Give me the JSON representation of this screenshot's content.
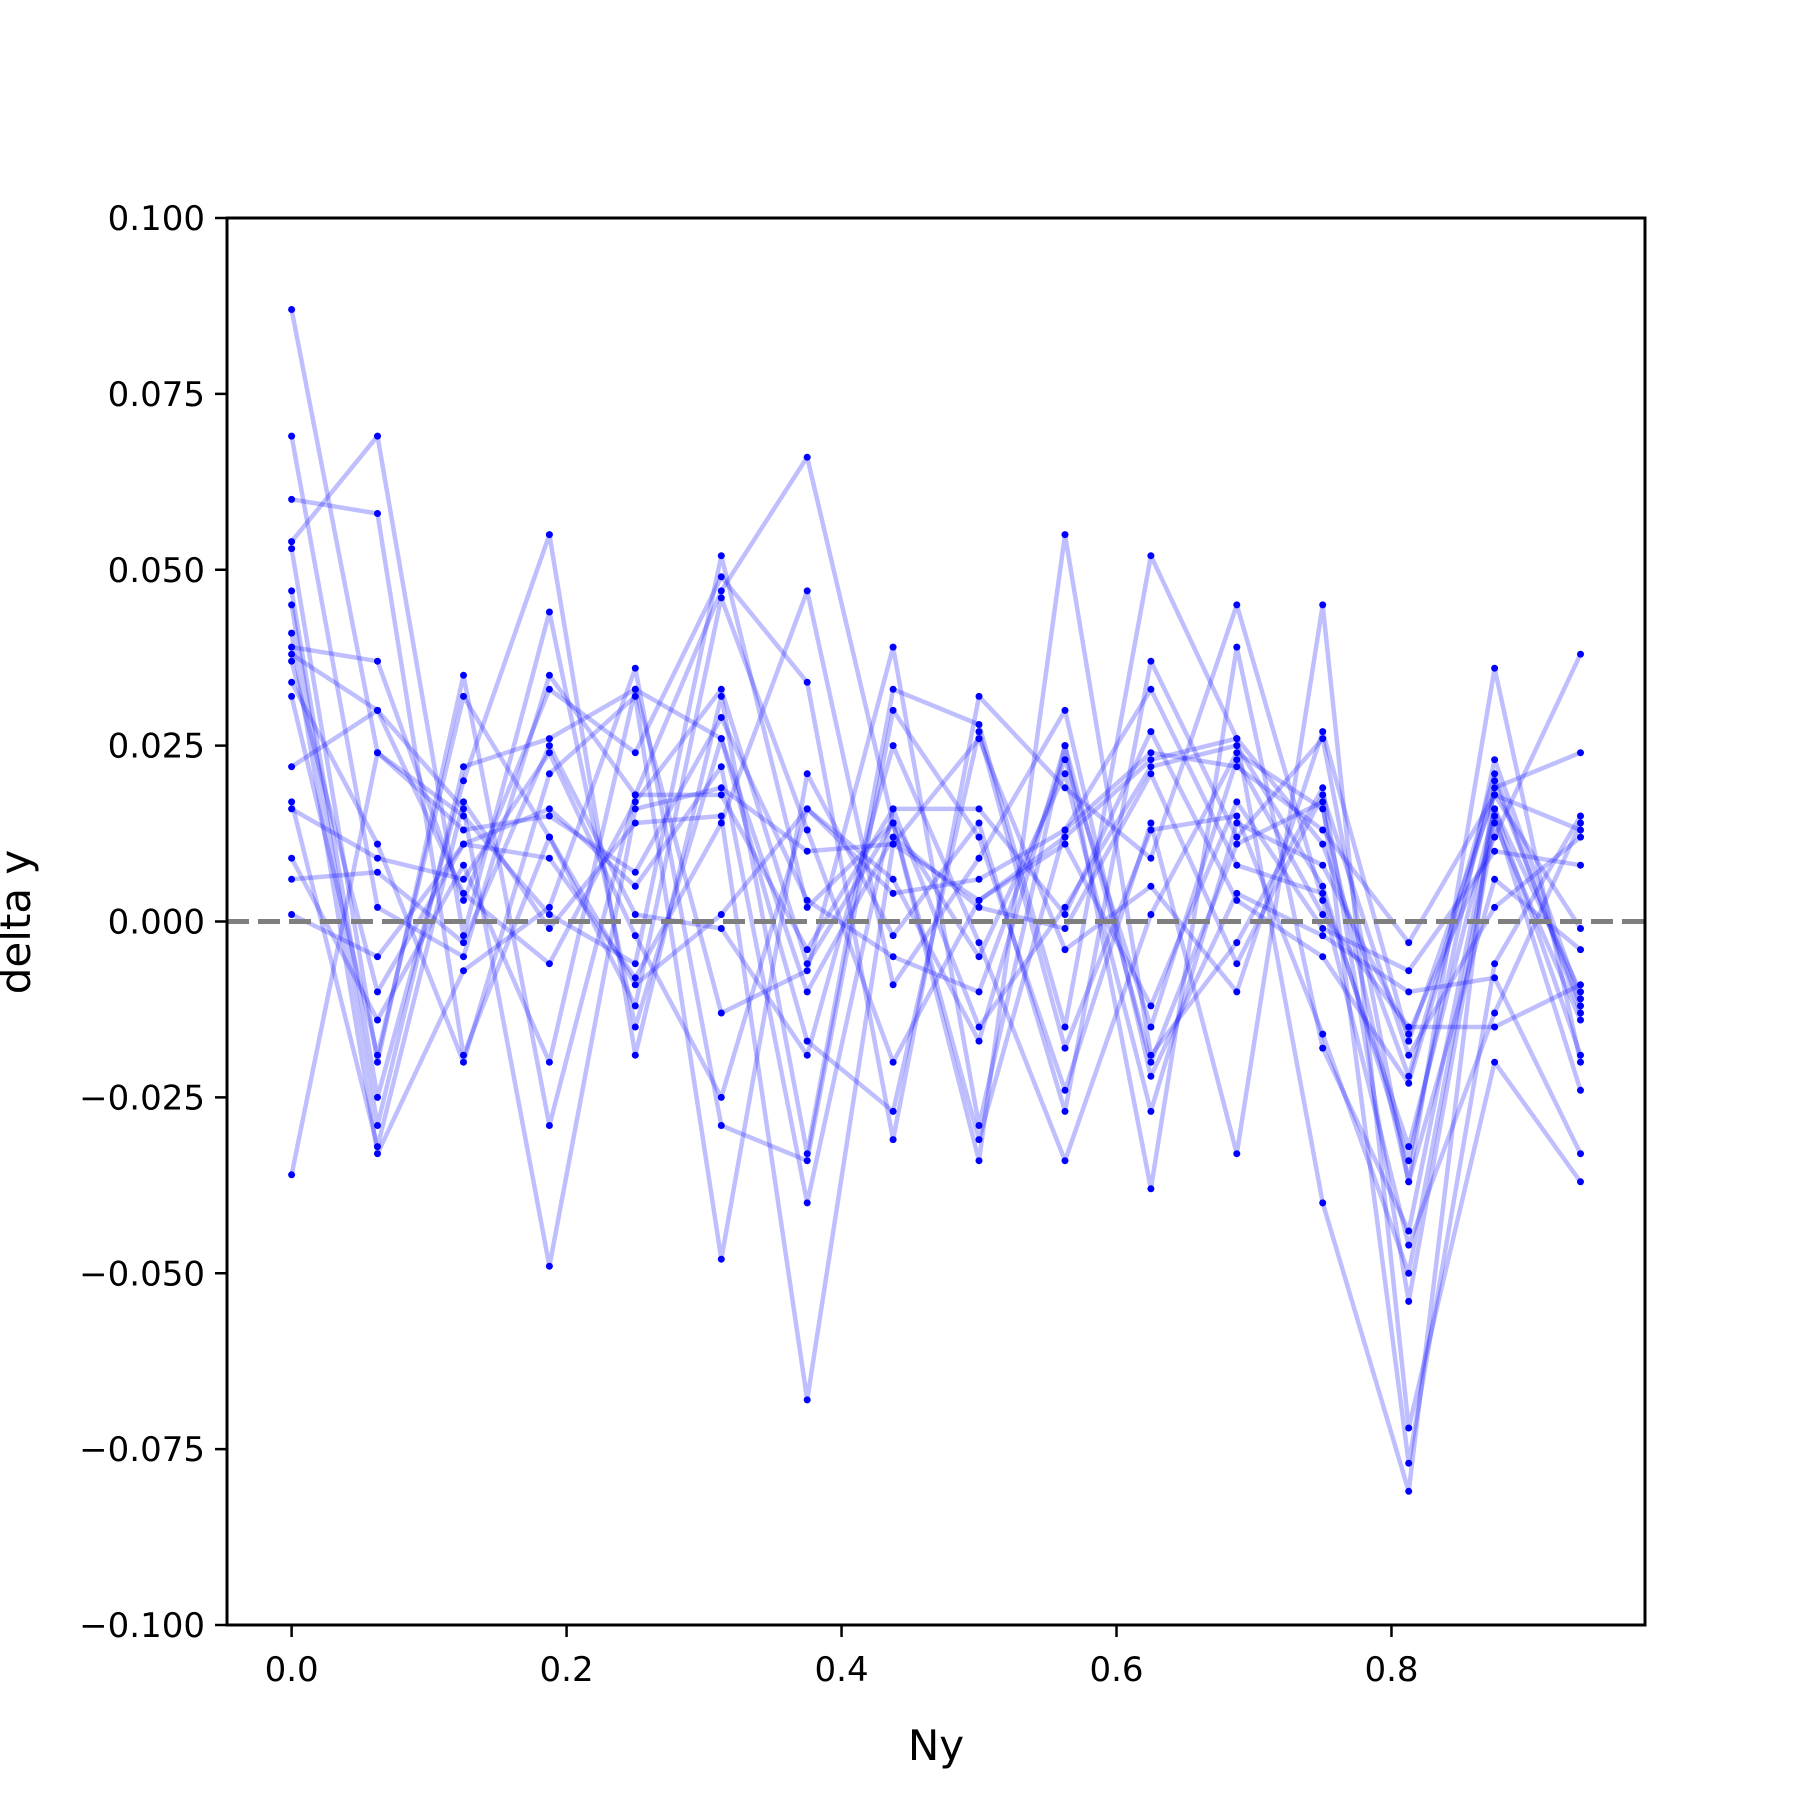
{
  "chart_data": {
    "type": "line",
    "xlabel": "Ny",
    "ylabel": "delta y",
    "xlim": [
      -0.047,
      0.9844
    ],
    "ylim": [
      -0.1,
      0.1
    ],
    "x": [
      0.0,
      0.0625,
      0.125,
      0.1875,
      0.25,
      0.3125,
      0.375,
      0.4375,
      0.5,
      0.5625,
      0.625,
      0.6875,
      0.75,
      0.8125,
      0.875,
      0.9375
    ],
    "x_ticks": [
      "0.0",
      "0.2",
      "0.4",
      "0.6",
      "0.8"
    ],
    "y_ticks": [
      "−0.100",
      "−0.075",
      "−0.050",
      "−0.025",
      "0.000",
      "0.025",
      "0.050",
      "0.075",
      "0.100"
    ],
    "reference_line": {
      "y": 0.0,
      "style": "dashed",
      "color": "#7f7f7f"
    },
    "line_color": "#0000ff",
    "line_opacity": 0.25,
    "marker_color": "#0000ff",
    "grid": false,
    "series": [
      {
        "values": [
          0.087,
          0.024,
          0.015,
          0.001,
          -0.006,
          0.052,
          0.002,
          0.014,
          -0.031,
          0.013,
          0.033,
          0.008,
          0.004,
          -0.032,
          0.016,
          -0.019
        ]
      },
      {
        "values": [
          0.069,
          0.002,
          -0.005,
          0.035,
          0.018,
          0.018,
          -0.004,
          0.016,
          -0.015,
          0.002,
          0.022,
          0.025,
          0.005,
          -0.034,
          0.023,
          -0.011
        ]
      },
      {
        "values": [
          0.06,
          0.058,
          -0.019,
          0.012,
          -0.012,
          0.046,
          0.013,
          -0.02,
          0.003,
          0.012,
          0.023,
          0.026,
          0.011,
          -0.022,
          0.021,
          -0.013
        ]
      },
      {
        "values": [
          0.054,
          0.069,
          -0.002,
          0.044,
          -0.015,
          0.026,
          -0.017,
          -0.027,
          0.027,
          -0.018,
          0.013,
          0.015,
          -0.016,
          -0.05,
          0.015,
          -0.024
        ]
      },
      {
        "values": [
          0.053,
          -0.02,
          0.035,
          -0.029,
          0.018,
          0.047,
          0.066,
          0.014,
          -0.034,
          0.055,
          -0.019,
          -0.003,
          0.019,
          -0.054,
          0.014,
          -0.014
        ]
      },
      {
        "values": [
          0.047,
          -0.025,
          0.02,
          0.055,
          -0.019,
          0.032,
          -0.033,
          0.033,
          0.028,
          -0.015,
          0.052,
          0.026,
          -0.04,
          -0.081,
          0.02,
          -0.012
        ]
      },
      {
        "values": [
          0.045,
          -0.029,
          0.022,
          0.026,
          0.033,
          -0.013,
          -0.007,
          0.039,
          -0.029,
          0.025,
          -0.02,
          0.011,
          0.017,
          -0.077,
          -0.006,
          0.015
        ]
      },
      {
        "values": [
          0.041,
          -0.033,
          -0.007,
          0.002,
          0.036,
          -0.029,
          -0.034,
          0.03,
          0.012,
          -0.024,
          0.014,
          -0.033,
          0.045,
          -0.072,
          -0.02,
          -0.037
        ]
      },
      {
        "values": [
          0.039,
          0.037,
          0.003,
          0.033,
          0.024,
          0.049,
          0.034,
          -0.031,
          0.032,
          0.019,
          0.009,
          0.045,
          0.003,
          -0.046,
          -0.013,
          0.014
        ]
      },
      {
        "values": [
          0.038,
          0.03,
          0.004,
          -0.006,
          0.017,
          0.033,
          -0.006,
          0.014,
          -0.005,
          0.021,
          -0.027,
          0.014,
          0.008,
          -0.016,
          0.012,
          0.038
        ]
      },
      {
        "values": [
          0.037,
          -0.01,
          0.011,
          0.016,
          0.005,
          0.022,
          -0.04,
          0.016,
          0.016,
          0.001,
          0.027,
          0.003,
          -0.005,
          -0.023,
          0.019,
          0.024
        ]
      },
      {
        "values": [
          0.034,
          0.011,
          -0.02,
          0.021,
          0.032,
          -0.048,
          0.021,
          -0.002,
          0.014,
          -0.027,
          0.037,
          0.012,
          0.026,
          -0.037,
          0.036,
          -0.02
        ]
      },
      {
        "values": [
          0.032,
          -0.019,
          0.032,
          0.012,
          -0.009,
          0.001,
          0.016,
          0.006,
          -0.017,
          0.025,
          -0.038,
          0.039,
          -0.018,
          -0.044,
          0.016,
          -0.01
        ]
      },
      {
        "values": [
          0.022,
          0.03,
          0.016,
          -0.049,
          0.016,
          0.019,
          0.01,
          0.011,
          0.026,
          -0.004,
          0.005,
          -0.01,
          0.027,
          -0.017,
          0.018,
          0.013
        ]
      },
      {
        "values": [
          0.017,
          -0.032,
          0.017,
          -0.001,
          0.014,
          0.015,
          -0.068,
          0.011,
          0.003,
          0.011,
          -0.012,
          0.017,
          -0.001,
          -0.007,
          0.01,
          0.008
        ]
      },
      {
        "values": [
          0.016,
          0.009,
          0.006,
          0.024,
          -0.002,
          -0.025,
          0.016,
          0.004,
          0.006,
          0.013,
          0.024,
          0.022,
          0.013,
          -0.003,
          0.018,
          -0.001
        ]
      },
      {
        "values": [
          0.009,
          -0.014,
          0.008,
          -0.02,
          0.033,
          0.026,
          -0.01,
          0.012,
          0.002,
          -0.001,
          0.021,
          -0.006,
          0.018,
          -0.019,
          0.002,
          0.012
        ]
      },
      {
        "values": [
          0.006,
          0.007,
          -0.003,
          0.025,
          0.001,
          -0.001,
          -0.019,
          0.025,
          -0.003,
          -0.034,
          0.001,
          0.024,
          0.016,
          -0.037,
          0.006,
          -0.004
        ]
      },
      {
        "values": [
          0.001,
          -0.005,
          0.011,
          0.009,
          -0.008,
          0.014,
          0.047,
          -0.009,
          0.009,
          0.03,
          -0.022,
          0.004,
          -0.002,
          -0.01,
          -0.008,
          -0.033
        ]
      },
      {
        "values": [
          -0.036,
          0.024,
          0.013,
          0.015,
          0.007,
          0.029,
          0.003,
          -0.005,
          -0.01,
          0.023,
          -0.015,
          0.023,
          0.001,
          -0.015,
          -0.015,
          -0.009
        ]
      }
    ]
  }
}
